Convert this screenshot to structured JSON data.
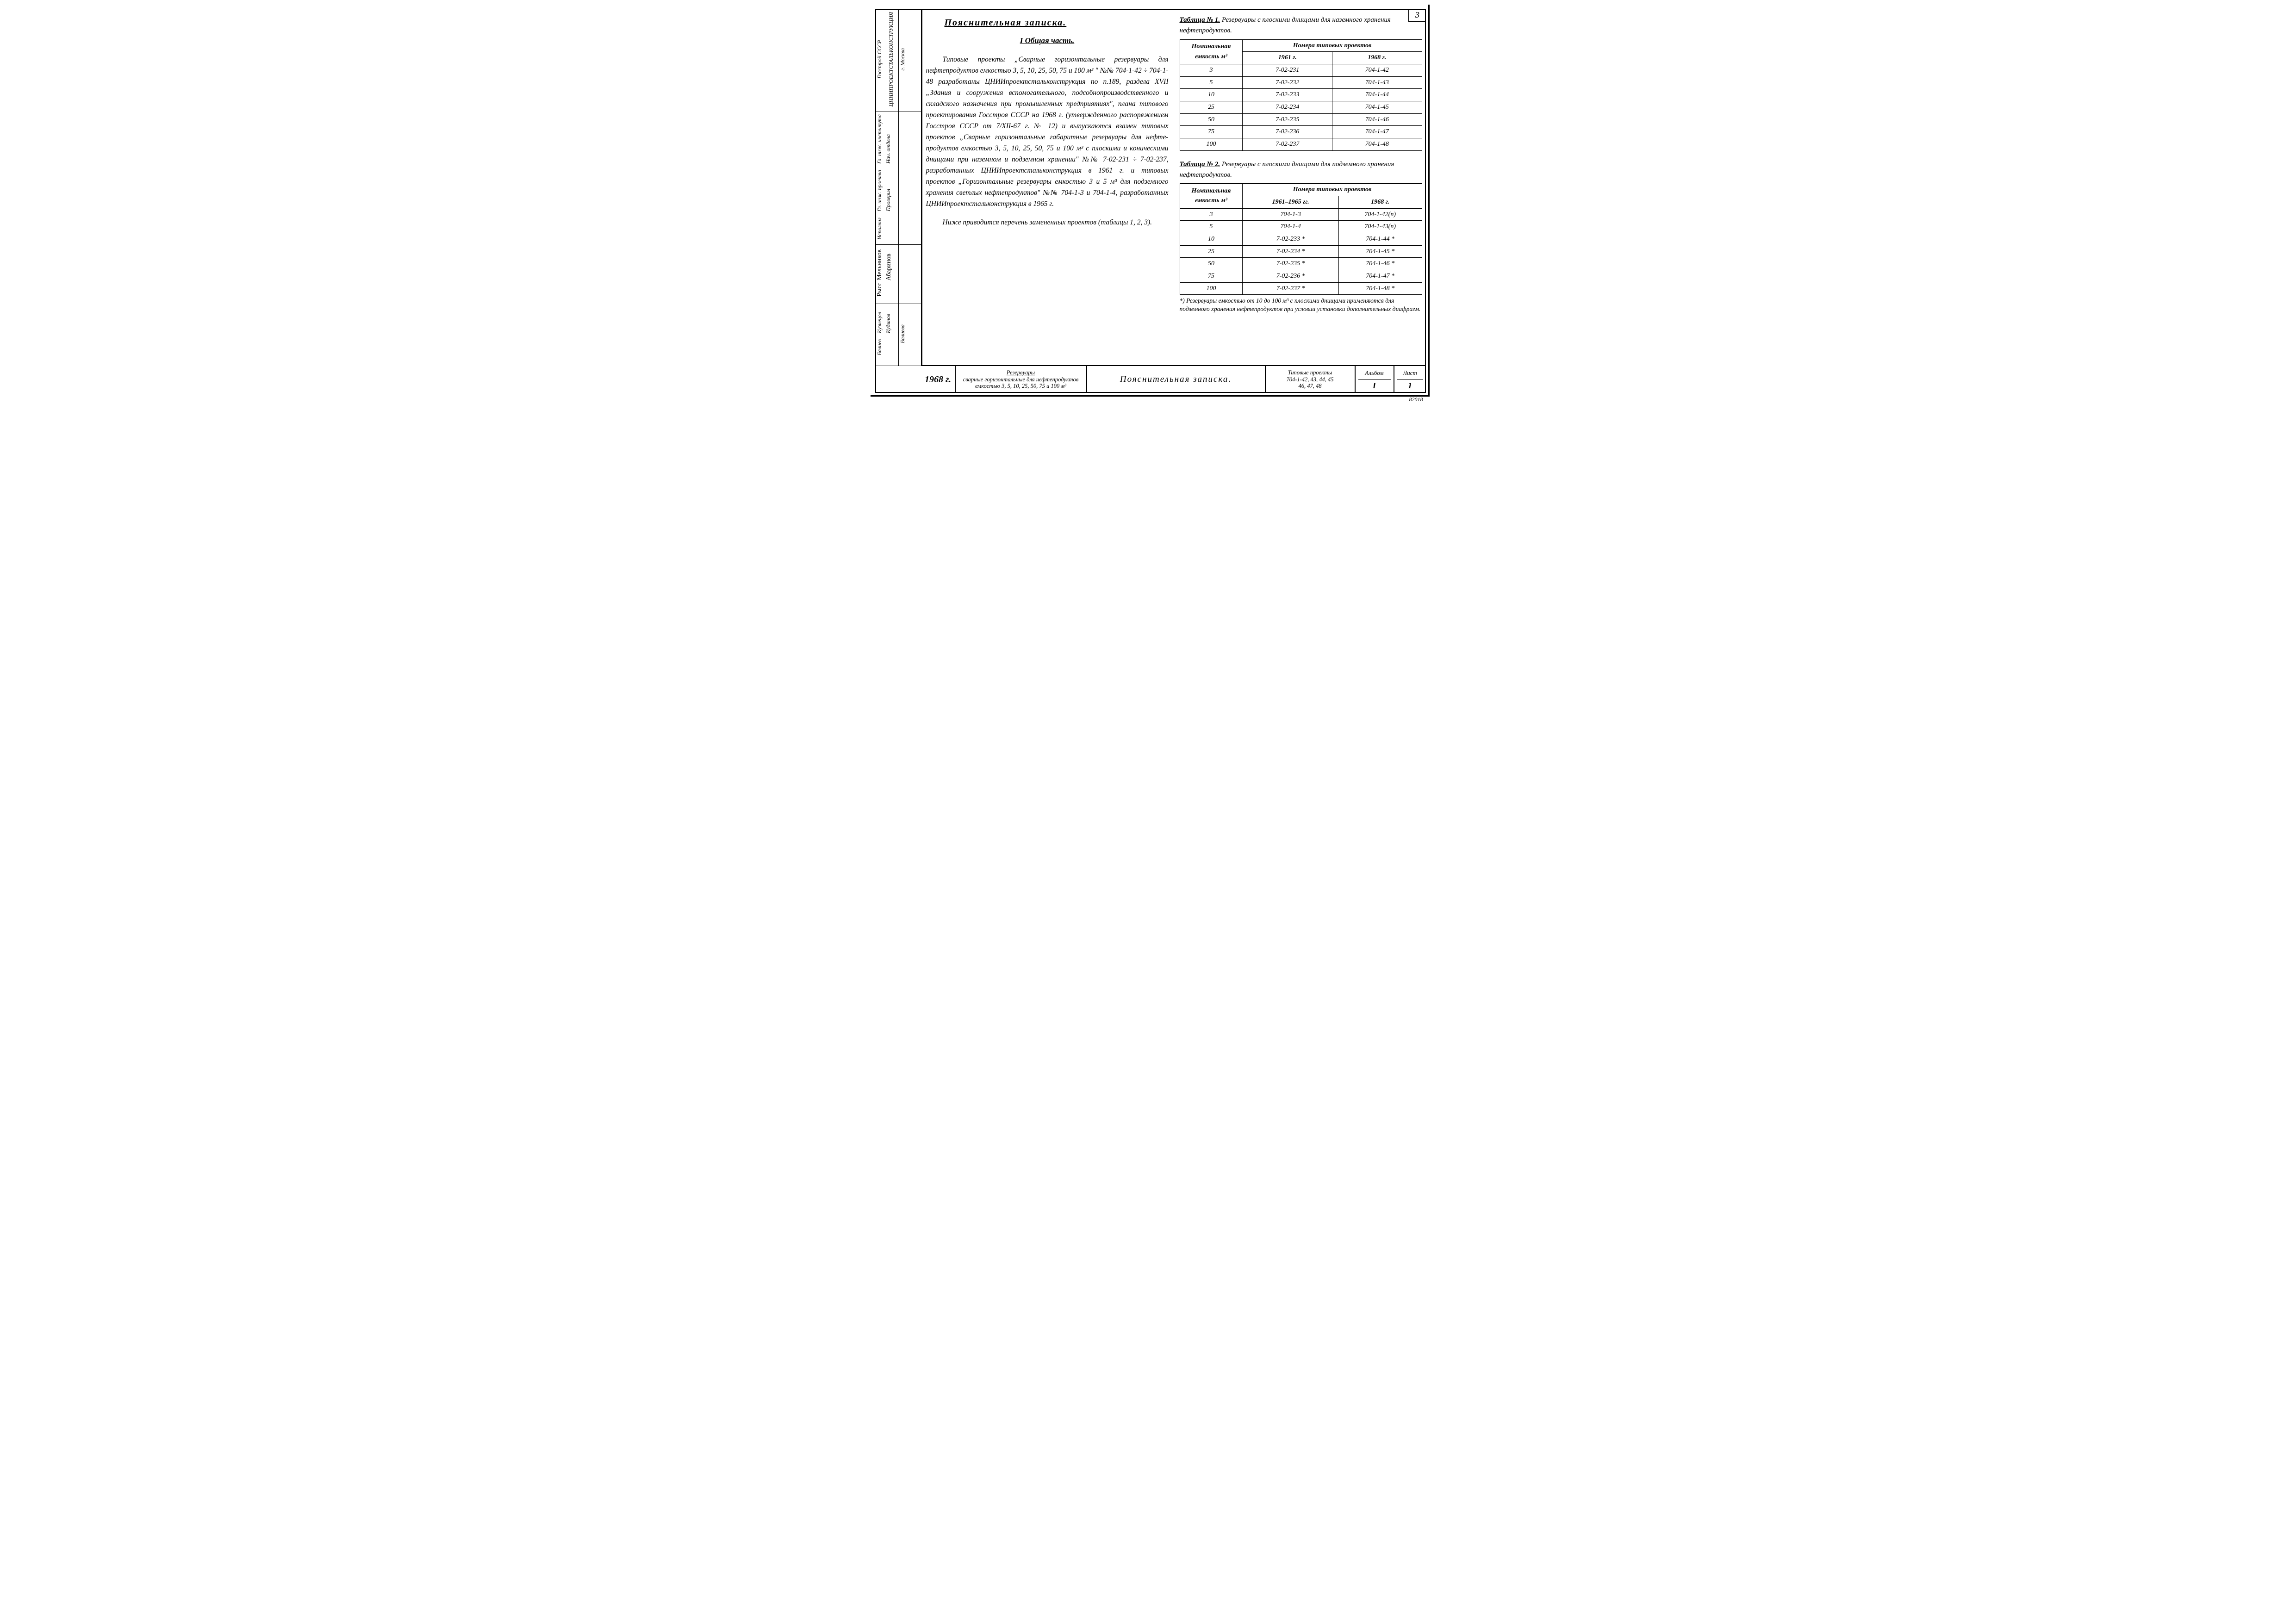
{
  "page_corner": "3",
  "bottom_small": "82018",
  "header": {
    "title": "Пояснительная   записка.",
    "section": "I  Общая часть."
  },
  "body_text": "Типовые проекты „Сварные горизонтальные резервуа­ры для нефтепродуктов емкостью 3, 5, 10, 25, 50, 75 и 100 м³ \" №№ 704-1-42 ÷ 704-1-48 разработаны ЦНИИпроектсталькон­струкция по п.189, раздела XVII „Здания и сооружения вспо­могательного, подсобнопроизводственного и складского назна­чения при промышленных предприятиях\", плана типового проектирования Госстроя СССР на 1968 г. (утвержденного распоряжением Госстроя СССР от 7/XII-67 г. № 12) и выпускаются взамен типовых проектов „Сварные горизонтальные габаритные резервуары для нефте­продуктов емкостью 3, 5, 10, 25, 50, 75 и 100 м³ с плоскими и коническими днищами при наземном и подземном хранении\" №№ 7-02-231 ÷ 7-02-237, разра­ботанных ЦНИИпроектстальконструкция в 1961 г. и типовых проектов „Горизонтальные резервуары емкостью 3 и 5 м³ для подземного хранения свет­лых нефтепродуктов\" №№ 704-1-3 и 704-1-4, разра­ботанных ЦНИИпроектстальконструкция в 1965 г.",
  "body_text2": "Ниже приводится перечень замененных проектов (таблицы 1, 2, 3).",
  "table1": {
    "title_a": "Таблица № 1.",
    "title_b": "Резервуары с плоскими днищами для наземного хранения нефтепродуктов.",
    "head_cap": "Номинальная емкость м³",
    "head_group": "Номера типовых проектов",
    "col_a": "1961 г.",
    "col_b": "1968 г.",
    "rows": [
      {
        "c": "3",
        "a": "7-02-231",
        "b": "704-1-42"
      },
      {
        "c": "5",
        "a": "7-02-232",
        "b": "704-1-43"
      },
      {
        "c": "10",
        "a": "7-02-233",
        "b": "704-1-44"
      },
      {
        "c": "25",
        "a": "7-02-234",
        "b": "704-1-45"
      },
      {
        "c": "50",
        "a": "7-02-235",
        "b": "704-1-46"
      },
      {
        "c": "75",
        "a": "7-02-236",
        "b": "704-1-47"
      },
      {
        "c": "100",
        "a": "7-02-237",
        "b": "704-1-48"
      }
    ]
  },
  "table2": {
    "title_a": "Таблица № 2.",
    "title_b": "Резервуары с плоскими днищами для подземного хранения нефтепродуктов.",
    "head_cap": "Номинальная емкость м³",
    "head_group": "Номера типовых проектов",
    "col_a": "1961–1965 гг.",
    "col_b": "1968 г.",
    "rows": [
      {
        "c": "3",
        "a": "704-1-3",
        "b": "704-1-42(п)"
      },
      {
        "c": "5",
        "a": "704-1-4",
        "b": "704-1-43(п)"
      },
      {
        "c": "10",
        "a": "7-02-233 *",
        "b": "704-1-44 *"
      },
      {
        "c": "25",
        "a": "7-02-234 *",
        "b": "704-1-45 *"
      },
      {
        "c": "50",
        "a": "7-02-235 *",
        "b": "704-1-46 *"
      },
      {
        "c": "75",
        "a": "7-02-236 *",
        "b": "704-1-47 *"
      },
      {
        "c": "100",
        "a": "7-02-237 *",
        "b": "704-1-48 *"
      }
    ],
    "footnote": "*) Резервуары емкостью от 10 до 100 м³ с плоскими днищами применяются для подземного хранения нефтепродуктов при условии установки дополнительных диафрагм."
  },
  "side": {
    "org1": "Госстрой СССР",
    "org2": "ЦНИИПРОЕКТСТАЛЬКОНСТРУКЦИЯ",
    "city": "г. Москва",
    "r1": "Гл. инж. института",
    "r2": "Нач. отдела",
    "r3": "Гл. инж. проекта",
    "r4": "Проверил",
    "r5": "Исполнил",
    "s1": "Мельников",
    "s2": "Абаринов",
    "s3": "Рысс",
    "n1": "Кузнецов",
    "n2": "Кудинов",
    "n3": "Балиев",
    "n4": "Балиева"
  },
  "titleblock": {
    "year": "1968 г.",
    "desc1": "Резервуары",
    "desc2": "сварные горизонтальные для нефтепродуктов",
    "desc3": "емкостью 3, 5, 10, 25, 50, 75 и 100 м³",
    "main": "Пояснительная   записка.",
    "proj1": "Типовые проекты",
    "proj2": "704-1-42, 43, 44, 45",
    "proj3": "46, 47, 48",
    "album_h": "Альбом",
    "album_v": "I",
    "sheet_h": "Лист",
    "sheet_v": "1"
  }
}
